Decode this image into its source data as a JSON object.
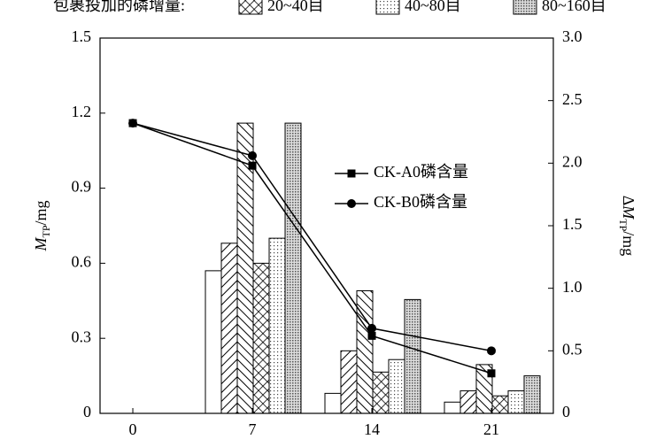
{
  "chart_data": {
    "type": "bar-line",
    "legend_title": "包裹投加的磷增量:",
    "y_label": {
      "main": "M",
      "sub": "TP",
      "unit": "/mg"
    },
    "y2_label": {
      "prefix": "Δ",
      "main": "M",
      "sub": "TP",
      "unit": "/mg"
    },
    "xlim": [
      -1.92,
      24.63
    ],
    "xticks": [
      0,
      7,
      14,
      21
    ],
    "ylim": [
      0,
      1.5
    ],
    "yticks": [
      0,
      0.3,
      0.6,
      0.9,
      1.2,
      1.5
    ],
    "y2lim": [
      0,
      3.0
    ],
    "y2ticks": [
      0,
      0.5,
      {
        "value": 1.0,
        "label": "1.0"
      },
      1.5,
      {
        "value": 2.0,
        "label": "2.0"
      },
      2.5,
      {
        "value": 3.0,
        "label": "3.0"
      }
    ],
    "bar_x": [
      7,
      14,
      21
    ],
    "bar_series": [
      {
        "pattern": "none",
        "axis": "y2",
        "values": [
          1.14,
          0.16,
          0.09
        ]
      },
      {
        "pattern": "diag",
        "axis": "y2",
        "values": [
          1.36,
          0.5,
          0.18
        ]
      },
      {
        "pattern": "backdiag",
        "axis": "y2",
        "values": [
          2.32,
          0.98,
          0.39
        ]
      },
      {
        "name": "20~40目",
        "pattern": "cross",
        "axis": "y2",
        "values": [
          1.2,
          0.33,
          0.14
        ]
      },
      {
        "name": "40~80目",
        "pattern": "dots",
        "axis": "y2",
        "values": [
          1.4,
          0.43,
          0.18
        ]
      },
      {
        "name": "80~160目",
        "pattern": "dense",
        "axis": "y2",
        "values": [
          2.32,
          0.91,
          0.3
        ]
      }
    ],
    "x": [
      0,
      7,
      14,
      21
    ],
    "line_series": [
      {
        "name": "CK-A0磷含量",
        "marker": "square",
        "color": "#000000",
        "values": [
          1.16,
          0.99,
          0.31,
          0.16
        ]
      },
      {
        "name": "CK-B0磷含量",
        "marker": "circle",
        "color": "#000000",
        "values": [
          1.16,
          1.03,
          0.34,
          0.25
        ]
      }
    ]
  }
}
